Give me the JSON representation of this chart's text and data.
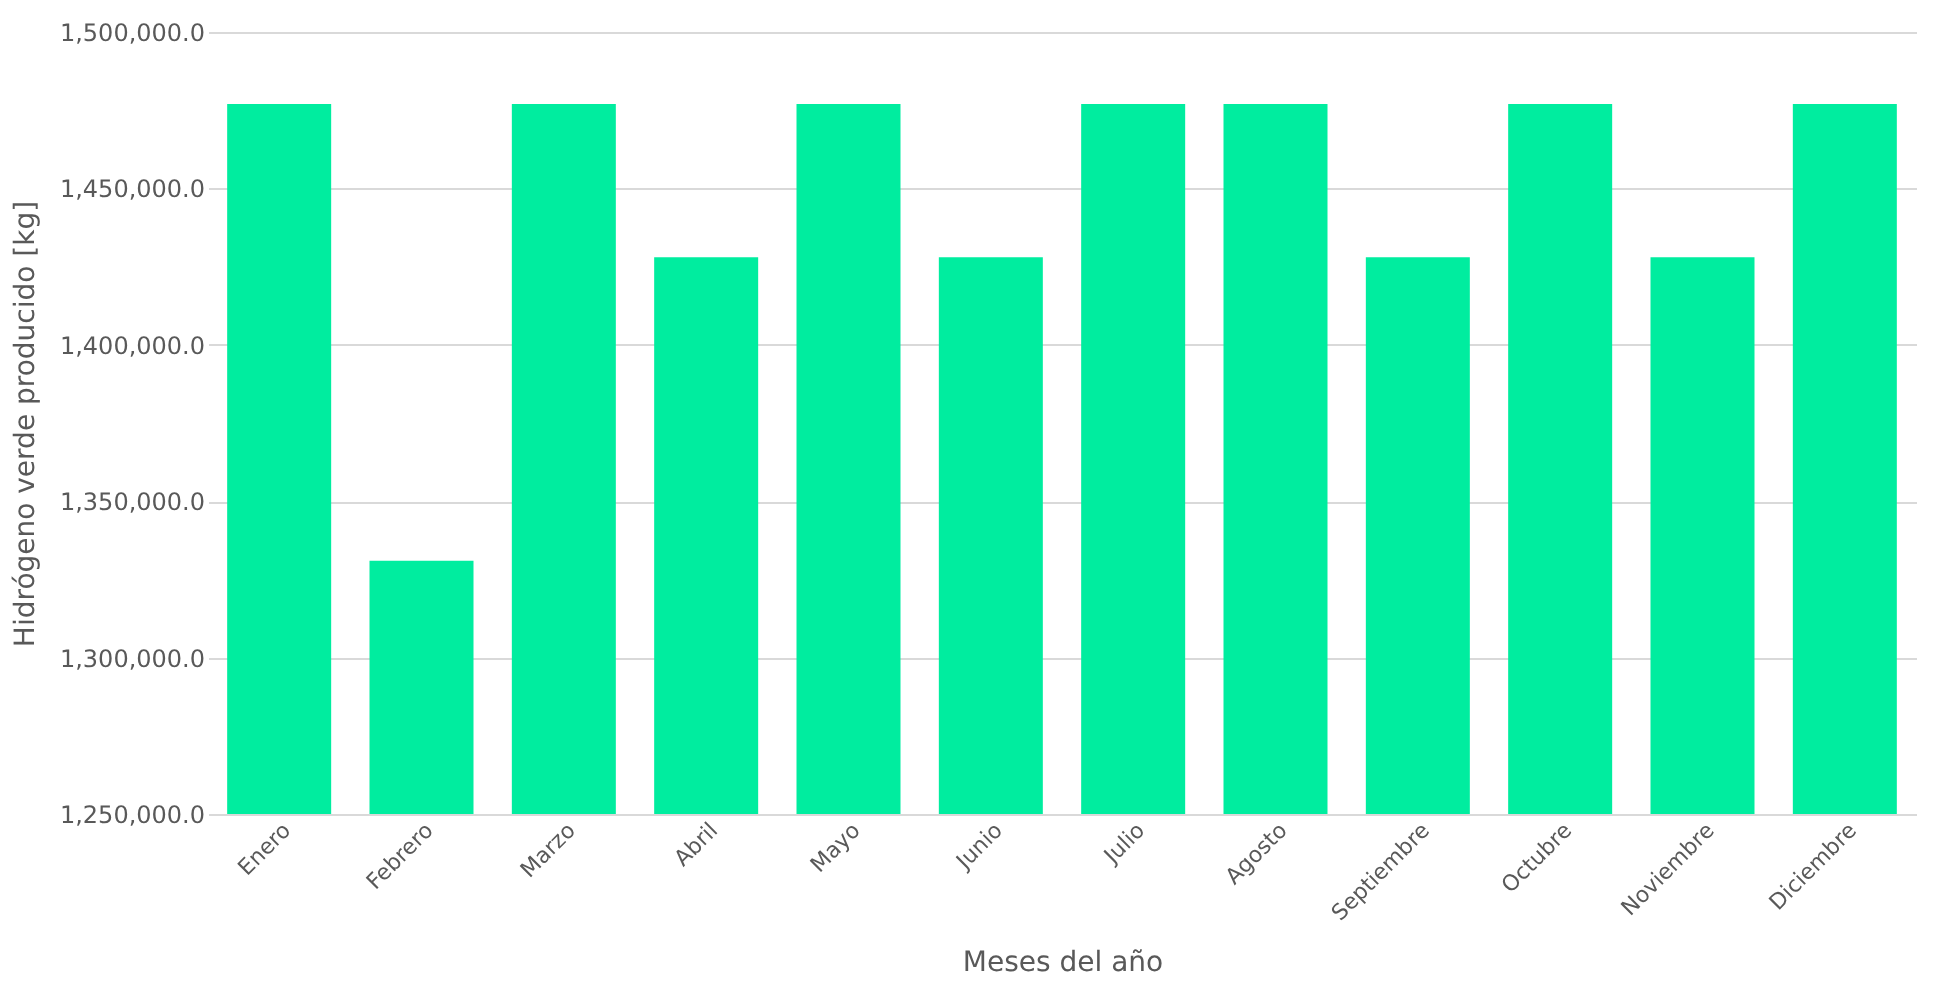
{
  "chart_data": {
    "type": "bar",
    "xlabel": "Meses del año",
    "ylabel": "Hidrógeno verde producido [kg]",
    "categories": [
      "Enero",
      "Febrero",
      "Marzo",
      "Abril",
      "Mayo",
      "Junio",
      "Julio",
      "Agosto",
      "Septiembre",
      "Octubre",
      "Noviembre",
      "Diciembre"
    ],
    "values": [
      1477000,
      1331000,
      1477000,
      1428000,
      1477000,
      1428000,
      1477000,
      1477000,
      1428000,
      1477000,
      1428000,
      1477000
    ],
    "color": "#00ed9f",
    "ylim": [
      1250000,
      1500000
    ],
    "yticks": [
      {
        "value": 1250000,
        "label": "1,250,000.0"
      },
      {
        "value": 1300000,
        "label": "1,300,000.0"
      },
      {
        "value": 1350000,
        "label": "1,350,000.0"
      },
      {
        "value": 1400000,
        "label": "1,400,000.0"
      },
      {
        "value": 1450000,
        "label": "1,450,000.0"
      },
      {
        "value": 1500000,
        "label": "1,500,000.0"
      }
    ],
    "grid": "y"
  }
}
